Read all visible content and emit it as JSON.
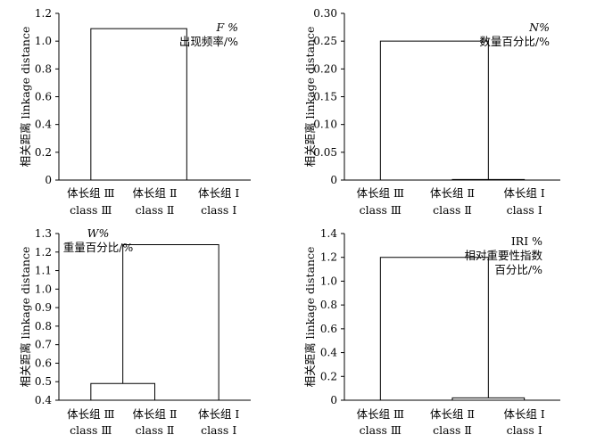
{
  "chart_data": [
    {
      "type": "dendrogram",
      "ylabel": "相关距离 linkage distance",
      "annotation": [
        "F %",
        "出现频率/%"
      ],
      "ylim": [
        0,
        1.2
      ],
      "yticks": [
        "0",
        "0.2",
        "0.4",
        "0.6",
        "0.8",
        "1.0",
        "1.2"
      ],
      "leaves": [
        {
          "cn": "体长组 Ⅲ",
          "en": "class Ⅲ"
        },
        {
          "cn": "体长组 Ⅱ",
          "en": "class Ⅱ"
        },
        {
          "cn": "体长组 Ⅰ",
          "en": "class Ⅰ"
        }
      ],
      "merges": [
        {
          "groups": [
            "class Ⅱ",
            "class Ⅰ"
          ],
          "distance": 0.0
        },
        {
          "groups": [
            "class Ⅲ",
            "class Ⅱ + class Ⅰ"
          ],
          "distance": 1.09
        }
      ]
    },
    {
      "type": "dendrogram",
      "ylabel": "相关距离 linkage distance",
      "annotation": [
        "N%",
        "数量百分比/%"
      ],
      "ylim": [
        0,
        0.3
      ],
      "yticks": [
        "0",
        "0.05",
        "0.10",
        "0.15",
        "0.20",
        "0.25",
        "0.30"
      ],
      "leaves": [
        {
          "cn": "体长组 Ⅲ",
          "en": "class Ⅲ"
        },
        {
          "cn": "体长组 Ⅱ",
          "en": "class Ⅱ"
        },
        {
          "cn": "体长组 Ⅰ",
          "en": "class Ⅰ"
        }
      ],
      "merges": [
        {
          "groups": [
            "class Ⅱ",
            "class Ⅰ"
          ],
          "distance": 0.001
        },
        {
          "groups": [
            "class Ⅲ",
            "class Ⅱ + class Ⅰ"
          ],
          "distance": 0.25
        }
      ]
    },
    {
      "type": "dendrogram",
      "ylabel": "相关距离 linkage distance",
      "annotation": [
        "W%",
        "重量百分比/%"
      ],
      "ylim": [
        0.4,
        1.3
      ],
      "yticks": [
        "0.4",
        "0.5",
        "0.6",
        "0.7",
        "0.8",
        "0.9",
        "1.0",
        "1.1",
        "1.2",
        "1.3"
      ],
      "leaves": [
        {
          "cn": "体长组 Ⅲ",
          "en": "class Ⅲ"
        },
        {
          "cn": "体长组 Ⅱ",
          "en": "class Ⅱ"
        },
        {
          "cn": "体长组 Ⅰ",
          "en": "class Ⅰ"
        }
      ],
      "merges": [
        {
          "groups": [
            "class Ⅲ",
            "class Ⅱ"
          ],
          "distance": 0.49
        },
        {
          "groups": [
            "class Ⅲ + class Ⅱ",
            "class Ⅰ"
          ],
          "distance": 1.24
        }
      ]
    },
    {
      "type": "dendrogram",
      "ylabel": "相关距离 linkage distance",
      "annotation": [
        "IRI %",
        "相对重要性指数",
        "百分比/%"
      ],
      "ylim": [
        0,
        1.4
      ],
      "yticks": [
        "0",
        "0.2",
        "0.4",
        "0.6",
        "0.8",
        "1.0",
        "1.2",
        "1.4"
      ],
      "leaves": [
        {
          "cn": "体长组 Ⅲ",
          "en": "class Ⅲ"
        },
        {
          "cn": "体长组 Ⅱ",
          "en": "class Ⅱ"
        },
        {
          "cn": "体长组 Ⅰ",
          "en": "class Ⅰ"
        }
      ],
      "merges": [
        {
          "groups": [
            "class Ⅱ",
            "class Ⅰ"
          ],
          "distance": 0.02
        },
        {
          "groups": [
            "class Ⅲ",
            "class Ⅱ + class Ⅰ"
          ],
          "distance": 1.2
        }
      ]
    }
  ]
}
